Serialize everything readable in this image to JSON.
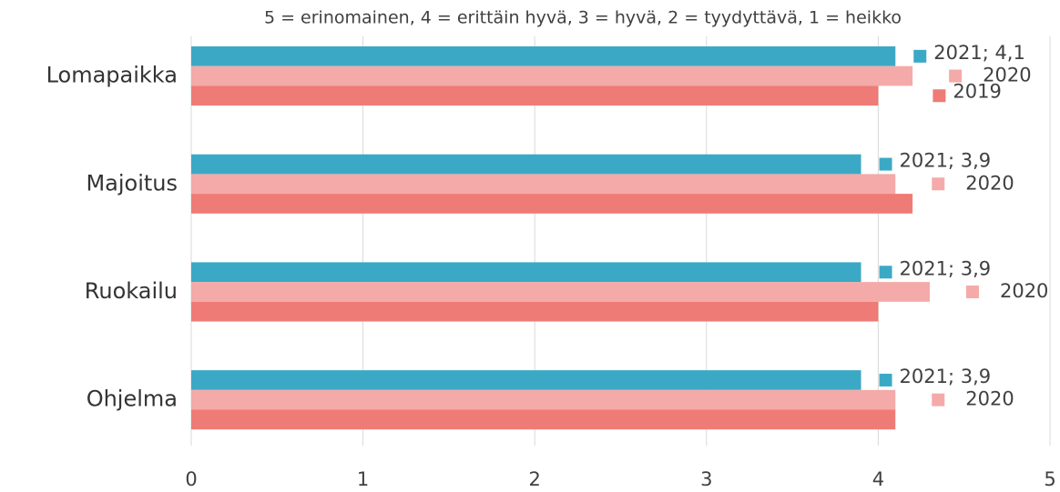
{
  "chart_data": {
    "type": "hbar",
    "subtitle": "5 = erinomainen, 4 = erittäin hyvä, 3 = hyvä, 2 = tyydyttävä, 1 = heikko",
    "categories": [
      "Lomapaikka",
      "Majoitus",
      "Ruokailu",
      "Ohjelma"
    ],
    "series": [
      {
        "name": "2021",
        "color": "#3ba9c6",
        "values": [
          4.1,
          3.9,
          3.9,
          3.9
        ],
        "value_labels": [
          "2021; 4,1",
          "2021; 3,9",
          "2021; 3,9",
          "2021; 3,9"
        ]
      },
      {
        "name": "2020",
        "color": "#f4aaa8",
        "values": [
          4.2,
          4.1,
          4.3,
          4.1
        ],
        "labels": [
          "2020",
          "2020",
          "2020",
          "2020"
        ]
      },
      {
        "name": "2019",
        "color": "#ef7b76",
        "values": [
          4.0,
          4.2,
          4.0,
          4.1
        ],
        "labels": [
          "2019",
          null,
          null,
          null
        ]
      }
    ],
    "xlim": [
      0,
      5
    ],
    "xticks": [
      0,
      1,
      2,
      3,
      4,
      5
    ],
    "grid": true
  }
}
